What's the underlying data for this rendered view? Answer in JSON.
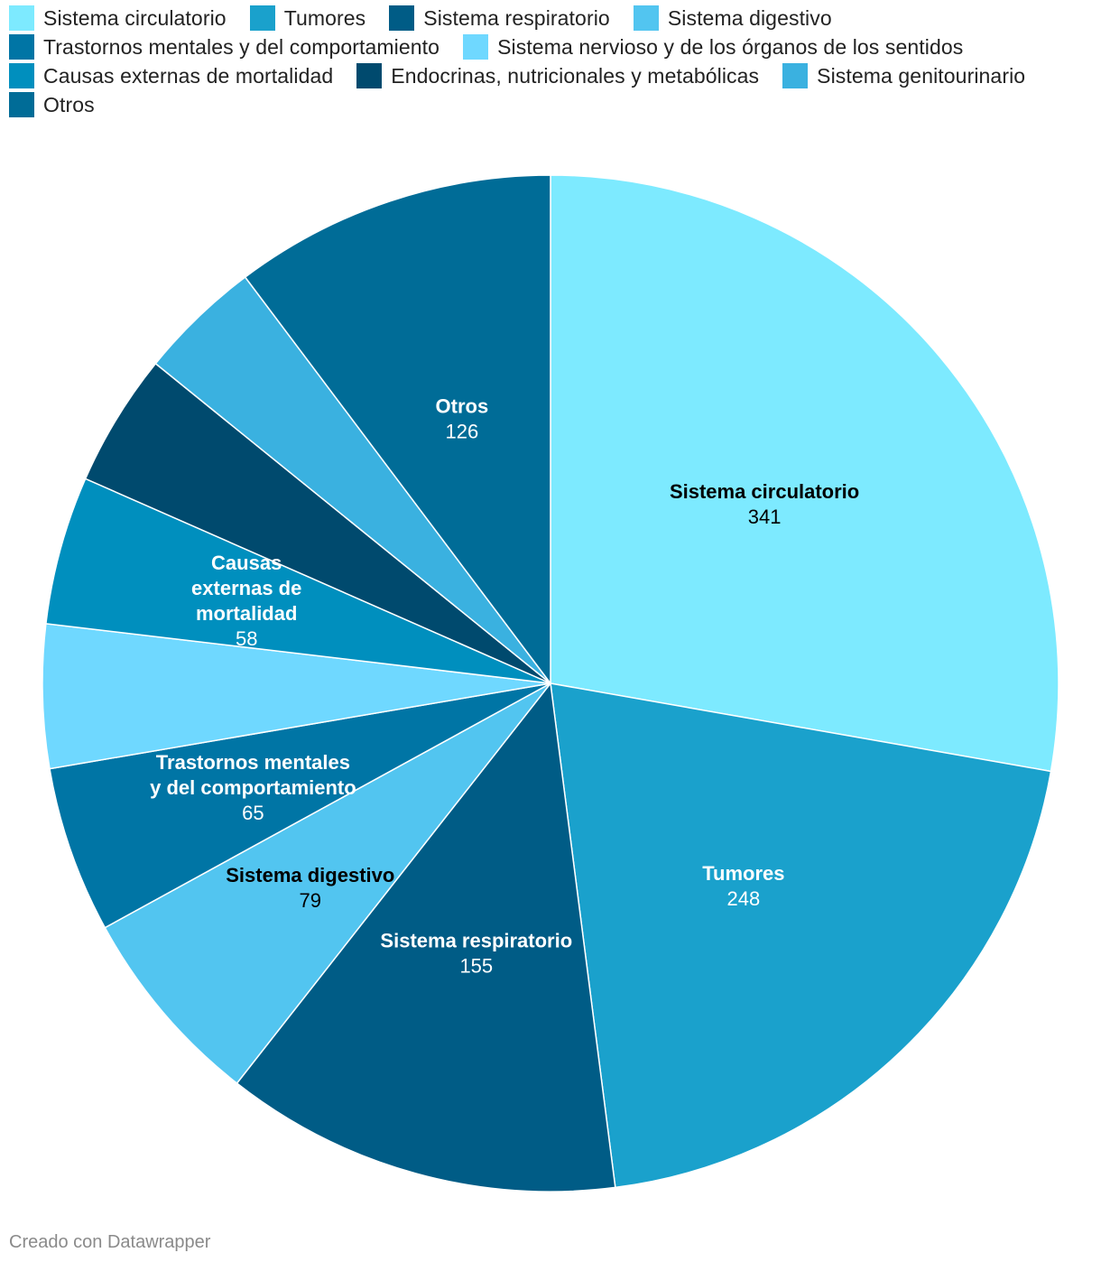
{
  "chart_data": {
    "type": "pie",
    "title": "",
    "slices": [
      {
        "name": "Sistema circulatorio",
        "value": 341,
        "color": "#7deaff",
        "label_lines": [
          "Sistema circulatorio"
        ],
        "label_color": "#000000"
      },
      {
        "name": "Tumores",
        "value": 248,
        "color": "#1aa1cc",
        "label_lines": [
          "Tumores"
        ],
        "label_color": "#ffffff"
      },
      {
        "name": "Sistema respiratorio",
        "value": 155,
        "color": "#005c86",
        "label_lines": [
          "Sistema respiratorio"
        ],
        "label_color": "#ffffff"
      },
      {
        "name": "Sistema digestivo",
        "value": 79,
        "color": "#52c5f0",
        "label_lines": [
          "Sistema digestivo"
        ],
        "label_color": "#000000"
      },
      {
        "name": "Trastornos mentales y del comportamiento",
        "value": 65,
        "color": "#0075a5",
        "label_lines": [
          "Trastornos mentales",
          "y del comportamiento"
        ],
        "label_color": "#ffffff"
      },
      {
        "name": "Sistema nervioso y de los órganos de los sentidos",
        "value": 56,
        "color": "#6fd8ff",
        "label_lines": [],
        "label_color": "#000000"
      },
      {
        "name": "Causas externas de mortalidad",
        "value": 58,
        "color": "#008fbe",
        "label_lines": [
          "Causas",
          "externas de",
          "mortalidad"
        ],
        "label_color": "#ffffff"
      },
      {
        "name": "Endocrinas, nutricionales y metabólicas",
        "value": 52,
        "color": "#004a6e",
        "label_lines": [],
        "label_color": "#ffffff"
      },
      {
        "name": "Sistema genitourinario",
        "value": 48,
        "color": "#3ab1e0",
        "label_lines": [],
        "label_color": "#ffffff"
      },
      {
        "name": "Otros",
        "value": 126,
        "color": "#006c97",
        "label_lines": [
          "Otros"
        ],
        "label_color": "#ffffff"
      }
    ],
    "legend": {
      "placement": "top"
    }
  },
  "footer": {
    "text": "Creado con Datawrapper"
  }
}
